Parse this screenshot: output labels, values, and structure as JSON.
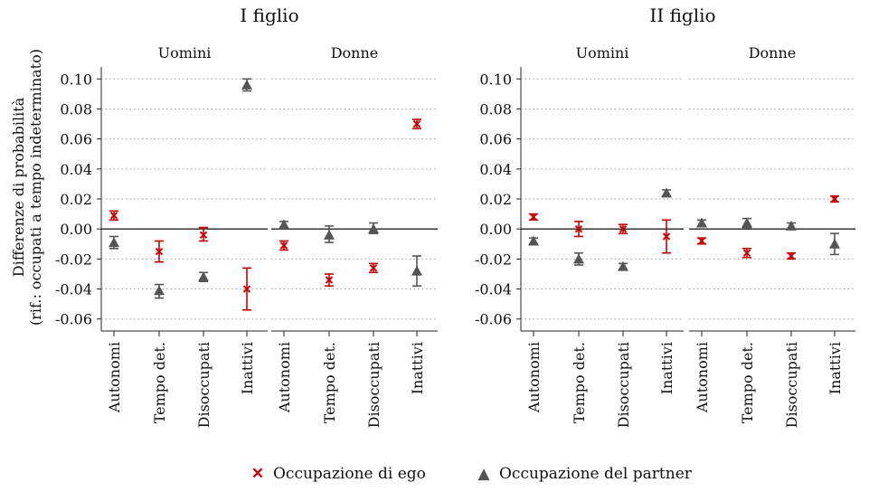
{
  "chart_data": {
    "type": "scatter",
    "ylabel_lines": [
      "Differenze di probabilità",
      "(rif.: occupati a tempo indeterminato)"
    ],
    "categories": [
      "Autonomi",
      "Tempo det.",
      "Disoccupati",
      "Inattivi"
    ],
    "ylim": [
      -0.068,
      0.108
    ],
    "yticks": [
      -0.06,
      -0.04,
      -0.02,
      0.0,
      0.02,
      0.04,
      0.06,
      0.08,
      0.1
    ],
    "ytick_labels": [
      "-0.06",
      "-0.04",
      "-0.02",
      "0.00",
      "0.02",
      "0.04",
      "0.06",
      "0.08",
      "0.10"
    ],
    "grid": true,
    "reference_line": 0,
    "legend_position": "bottom",
    "colors": {
      "ego": "#cc0000",
      "partner": "#555555"
    },
    "series": [
      {
        "name": "Occupazione di ego",
        "key": "ego",
        "marker": "x",
        "color": "#cc0000"
      },
      {
        "name": "Occupazione del partner",
        "key": "partner",
        "marker": "triangle",
        "color": "#555555"
      }
    ],
    "groups": [
      {
        "title": "I figlio",
        "panels": [
          {
            "title": "Uomini",
            "ego": [
              [
                0.009,
                0.006,
                0.012
              ],
              [
                -0.015,
                -0.022,
                -0.008
              ],
              [
                -0.004,
                -0.008,
                0.001
              ],
              [
                -0.04,
                -0.054,
                -0.026
              ]
            ],
            "partner": [
              [
                -0.009,
                -0.013,
                -0.005
              ],
              [
                -0.041,
                -0.046,
                -0.037
              ],
              [
                -0.032,
                -0.035,
                -0.029
              ],
              [
                0.096,
                0.092,
                0.1
              ]
            ]
          },
          {
            "title": "Donne",
            "ego": [
              [
                -0.011,
                -0.014,
                -0.008
              ],
              [
                -0.034,
                -0.038,
                -0.03
              ],
              [
                -0.026,
                -0.029,
                -0.023
              ],
              [
                0.07,
                0.067,
                0.073
              ]
            ],
            "partner": [
              [
                0.003,
                0.001,
                0.005
              ],
              [
                -0.004,
                -0.009,
                0.002
              ],
              [
                0.0,
                -0.003,
                0.004
              ],
              [
                -0.028,
                -0.038,
                -0.018
              ]
            ]
          }
        ]
      },
      {
        "title": "II figlio",
        "panels": [
          {
            "title": "Uomini",
            "ego": [
              [
                0.008,
                0.006,
                0.01
              ],
              [
                0.0,
                -0.005,
                0.005
              ],
              [
                0.0,
                -0.003,
                0.003
              ],
              [
                -0.005,
                -0.016,
                0.006
              ]
            ],
            "partner": [
              [
                -0.008,
                -0.01,
                -0.006
              ],
              [
                -0.02,
                -0.024,
                -0.016
              ],
              [
                -0.025,
                -0.027,
                -0.023
              ],
              [
                0.024,
                0.022,
                0.026
              ]
            ]
          },
          {
            "title": "Donne",
            "ego": [
              [
                -0.008,
                -0.01,
                -0.006
              ],
              [
                -0.016,
                -0.019,
                -0.013
              ],
              [
                -0.018,
                -0.02,
                -0.016
              ],
              [
                0.02,
                0.018,
                0.022
              ]
            ],
            "partner": [
              [
                0.004,
                0.002,
                0.006
              ],
              [
                0.004,
                0.001,
                0.007
              ],
              [
                0.002,
                0.0,
                0.004
              ],
              [
                -0.01,
                -0.017,
                -0.003
              ]
            ]
          }
        ]
      }
    ]
  }
}
